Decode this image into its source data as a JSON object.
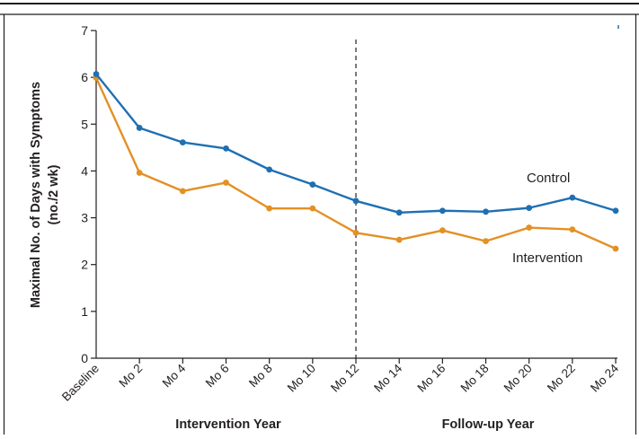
{
  "chart_data": {
    "type": "line",
    "title": "",
    "ylabel_line1": "Maximal No. of Days with Symptoms",
    "ylabel_line2": "(no./2 wk)",
    "xlabel": "",
    "ylim": [
      0,
      7
    ],
    "yticks": [
      "0",
      "1",
      "2",
      "3",
      "4",
      "5",
      "6",
      "7"
    ],
    "categories": [
      "Baseline",
      "Mo 2",
      "Mo 4",
      "Mo 6",
      "Mo 8",
      "Mo 10",
      "Mo 12",
      "Mo 14",
      "Mo 16",
      "Mo 18",
      "Mo 20",
      "Mo 22",
      "Mo 24"
    ],
    "groups": [
      {
        "label": "Intervention Year",
        "from": "Mo 2",
        "to": "Mo 10"
      },
      {
        "label": "Follow-up Year",
        "from": "Mo 14",
        "to": "Mo 22"
      }
    ],
    "divider_after": "Mo 12",
    "grid": false,
    "legend": "inline labels near line ends",
    "series": [
      {
        "name": "Control",
        "color": "#1f6fb2",
        "values": [
          6.07,
          4.92,
          4.61,
          4.48,
          4.03,
          3.71,
          3.36,
          3.11,
          3.15,
          3.13,
          3.21,
          3.43,
          3.15
        ]
      },
      {
        "name": "Intervention",
        "color": "#e39024",
        "values": [
          5.99,
          3.96,
          3.57,
          3.75,
          3.2,
          3.2,
          2.68,
          2.53,
          2.73,
          2.5,
          2.79,
          2.75,
          2.34
        ]
      }
    ]
  }
}
